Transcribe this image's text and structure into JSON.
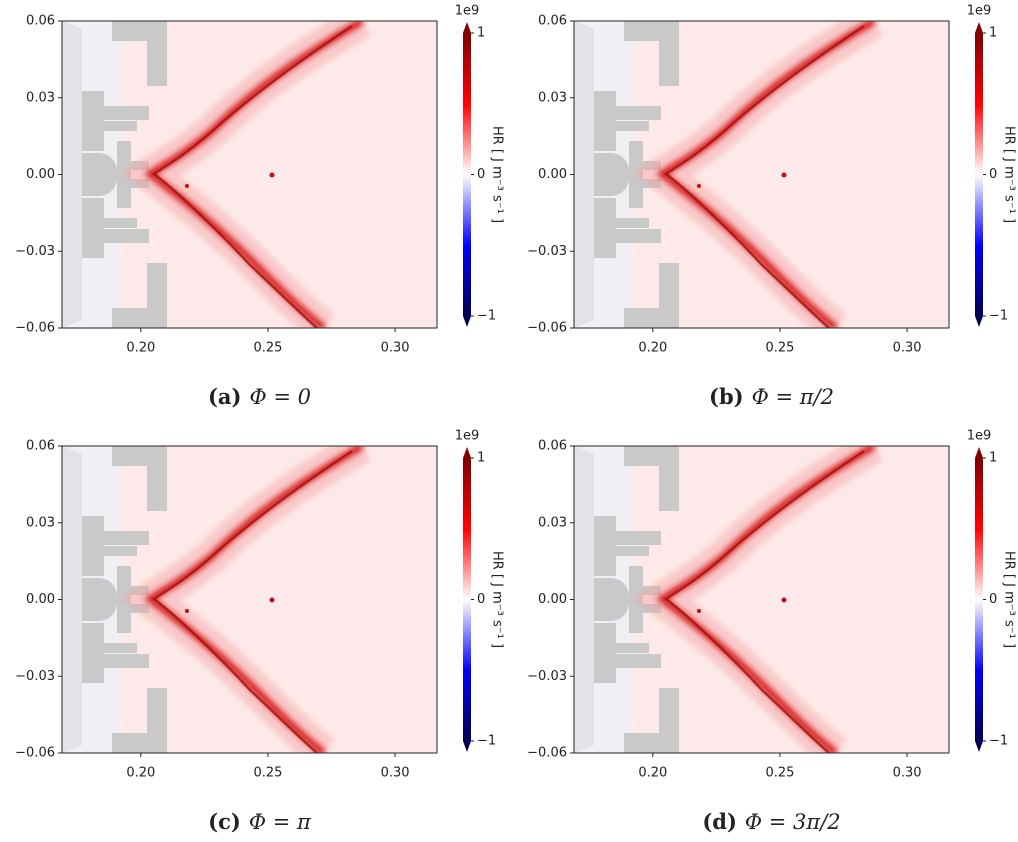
{
  "chart_data": [
    {
      "type": "heatmap",
      "label": "(a)",
      "caption": "Φ = 0",
      "xlim": [
        0.169,
        0.3165
      ],
      "xticks": [
        {
          "value": 0.2,
          "label": "0.20"
        },
        {
          "value": 0.25,
          "label": "0.25"
        },
        {
          "value": 0.3,
          "label": "0.30"
        }
      ],
      "ylim": [
        -0.06,
        0.06
      ],
      "yticks": [
        {
          "value": -0.06,
          "label": "−0.06"
        },
        {
          "value": -0.03,
          "label": "−0.03"
        },
        {
          "value": 0,
          "label": "0.00"
        },
        {
          "value": 0.03,
          "label": "0.03"
        },
        {
          "value": 0.06,
          "label": "0.06"
        }
      ],
      "colorbar_label": "HR [ J m⁻³ s⁻¹ ]",
      "colorbar_offset": "1e9",
      "clim": [
        -1,
        1
      ],
      "cticks": [
        {
          "value": -1,
          "label": "−1"
        },
        0,
        1
      ],
      "colormap": [
        "#00004c",
        "#0000ff",
        "#ffffff",
        "#ff0000",
        "#800000"
      ]
    },
    {
      "type": "heatmap",
      "label": "(b)",
      "caption": "Φ = π/2",
      "xlim": [
        0.169,
        0.3165
      ],
      "xticks": [
        {
          "value": 0.2,
          "label": "0.20"
        },
        {
          "value": 0.25,
          "label": "0.25"
        },
        {
          "value": 0.3,
          "label": "0.30"
        }
      ],
      "ylim": [
        -0.06,
        0.06
      ],
      "yticks": [
        {
          "value": -0.06,
          "label": "−0.06"
        },
        {
          "value": -0.03,
          "label": "−0.03"
        },
        {
          "value": 0,
          "label": "0.00"
        },
        {
          "value": 0.03,
          "label": "0.03"
        },
        {
          "value": 0.06,
          "label": "0.06"
        }
      ],
      "colorbar_label": "HR [ J m⁻³ s⁻¹ ]",
      "colorbar_offset": "1e9",
      "clim": [
        -1,
        1
      ],
      "cticks": [
        {
          "value": -1,
          "label": "−1"
        },
        0,
        1
      ],
      "colormap": [
        "#00004c",
        "#0000ff",
        "#ffffff",
        "#ff0000",
        "#800000"
      ]
    },
    {
      "type": "heatmap",
      "label": "(c)",
      "caption": "Φ = π",
      "xlim": [
        0.169,
        0.3165
      ],
      "xticks": [
        {
          "value": 0.2,
          "label": "0.20"
        },
        {
          "value": 0.25,
          "label": "0.25"
        },
        {
          "value": 0.3,
          "label": "0.30"
        }
      ],
      "ylim": [
        -0.06,
        0.06
      ],
      "yticks": [
        {
          "value": -0.06,
          "label": "−0.06"
        },
        {
          "value": -0.03,
          "label": "−0.03"
        },
        {
          "value": 0,
          "label": "0.00"
        },
        {
          "value": 0.03,
          "label": "0.03"
        },
        {
          "value": 0.06,
          "label": "0.06"
        }
      ],
      "colorbar_label": "HR [ J m⁻³ s⁻¹ ]",
      "colorbar_offset": "1e9",
      "clim": [
        -1,
        1
      ],
      "cticks": [
        {
          "value": -1,
          "label": "−1"
        },
        0,
        1
      ],
      "colormap": [
        "#00004c",
        "#0000ff",
        "#ffffff",
        "#ff0000",
        "#800000"
      ]
    },
    {
      "type": "heatmap",
      "label": "(d)",
      "caption": "Φ = 3π/2",
      "xlim": [
        0.169,
        0.3165
      ],
      "xticks": [
        {
          "value": 0.2,
          "label": "0.20"
        },
        {
          "value": 0.25,
          "label": "0.25"
        },
        {
          "value": 0.3,
          "label": "0.30"
        }
      ],
      "ylim": [
        -0.06,
        0.06
      ],
      "yticks": [
        {
          "value": -0.06,
          "label": "−0.06"
        },
        {
          "value": -0.03,
          "label": "−0.03"
        },
        {
          "value": 0,
          "label": "0.00"
        },
        {
          "value": 0.03,
          "label": "0.03"
        },
        {
          "value": 0.06,
          "label": "0.06"
        }
      ],
      "colorbar_label": "HR [ J m⁻³ s⁻¹ ]",
      "colorbar_offset": "1e9",
      "clim": [
        -1,
        1
      ],
      "cticks": [
        {
          "value": -1,
          "label": "−1"
        },
        0,
        1
      ],
      "colormap": [
        "#00004c",
        "#0000ff",
        "#ffffff",
        "#ff0000",
        "#800000"
      ]
    }
  ]
}
